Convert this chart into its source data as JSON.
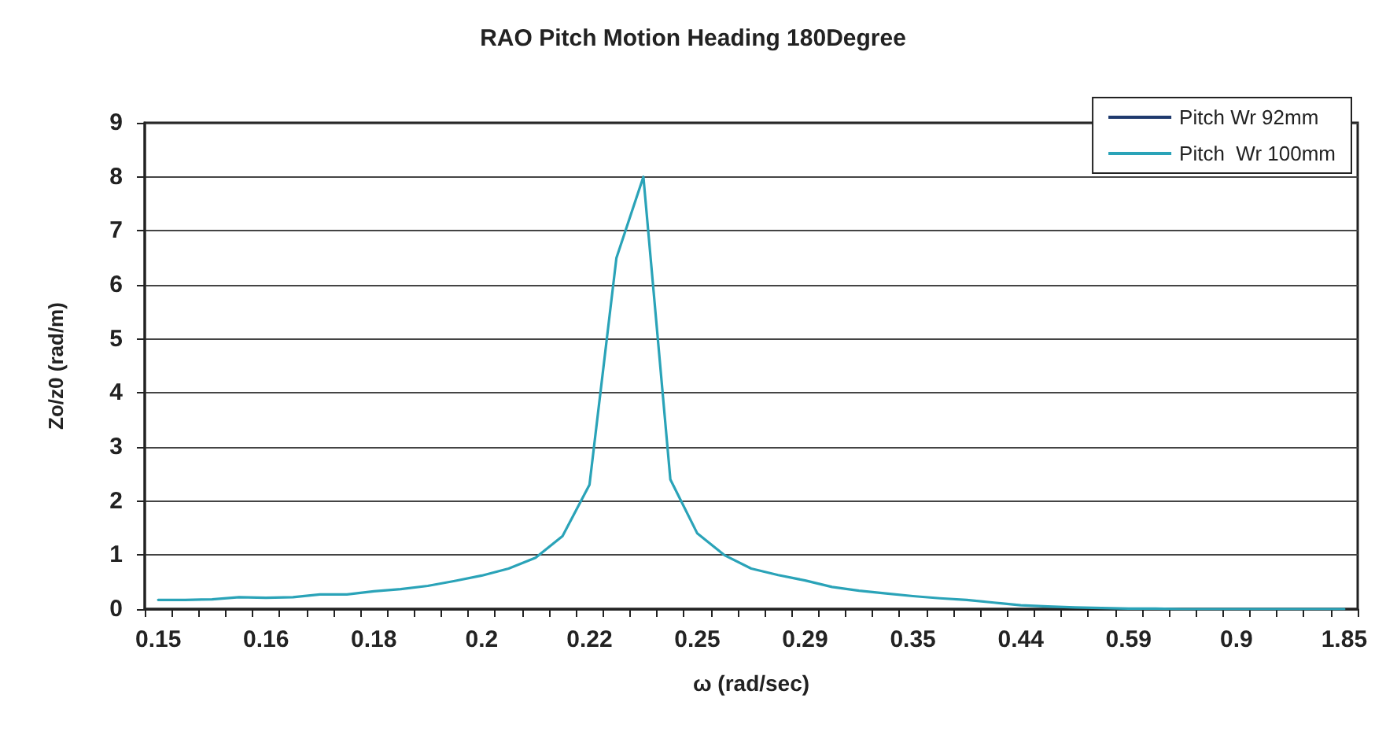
{
  "chart_data": {
    "type": "line",
    "title": "RAO Pitch Motion Heading 180Degree",
    "xlabel": "ω (rad/sec)",
    "ylabel": "Zo/z0 (rad/m)",
    "categories": [
      "0.15",
      null,
      null,
      null,
      "0.16",
      null,
      null,
      null,
      "0.18",
      null,
      null,
      null,
      "0.2",
      null,
      null,
      null,
      "0.22",
      null,
      null,
      null,
      "0.25",
      null,
      null,
      null,
      "0.29",
      null,
      null,
      null,
      "0.35",
      null,
      null,
      null,
      "0.44",
      null,
      null,
      null,
      "0.59",
      null,
      null,
      null,
      "0.9",
      null,
      null,
      null,
      "1.85"
    ],
    "series": [
      {
        "name": "Pitch Wr 92mm",
        "color": "#1f3a6e",
        "values": [
          null,
          null,
          null,
          null,
          null,
          null,
          null,
          null,
          null,
          null,
          null,
          null,
          null,
          null,
          null,
          null,
          null,
          null,
          null,
          null,
          null,
          null,
          null,
          null,
          null,
          null,
          null,
          null,
          null,
          null,
          null,
          null,
          null,
          null,
          null,
          null,
          null,
          null,
          null,
          null,
          null,
          null,
          null,
          null,
          null
        ]
      },
      {
        "name": "Pitch  Wr 100mm",
        "color": "#2aa3b8",
        "values": [
          0.17,
          0.17,
          0.18,
          0.22,
          0.21,
          0.22,
          0.27,
          0.27,
          0.33,
          0.37,
          0.43,
          0.52,
          0.62,
          0.75,
          0.95,
          1.35,
          2.3,
          6.5,
          8.0,
          2.4,
          1.4,
          1.0,
          0.75,
          0.63,
          0.53,
          0.41,
          0.34,
          0.29,
          0.24,
          0.2,
          0.17,
          0.12,
          0.07,
          0.05,
          0.03,
          0.02,
          0.01,
          0.01,
          0,
          0,
          0,
          0,
          0,
          0,
          0
        ]
      }
    ],
    "ylim": [
      0,
      9
    ],
    "yticks": [
      0,
      1,
      2,
      3,
      4,
      5,
      6,
      7,
      8,
      9
    ],
    "grid": "y",
    "legend": "top right",
    "marker": "none",
    "line_style": "solid"
  }
}
